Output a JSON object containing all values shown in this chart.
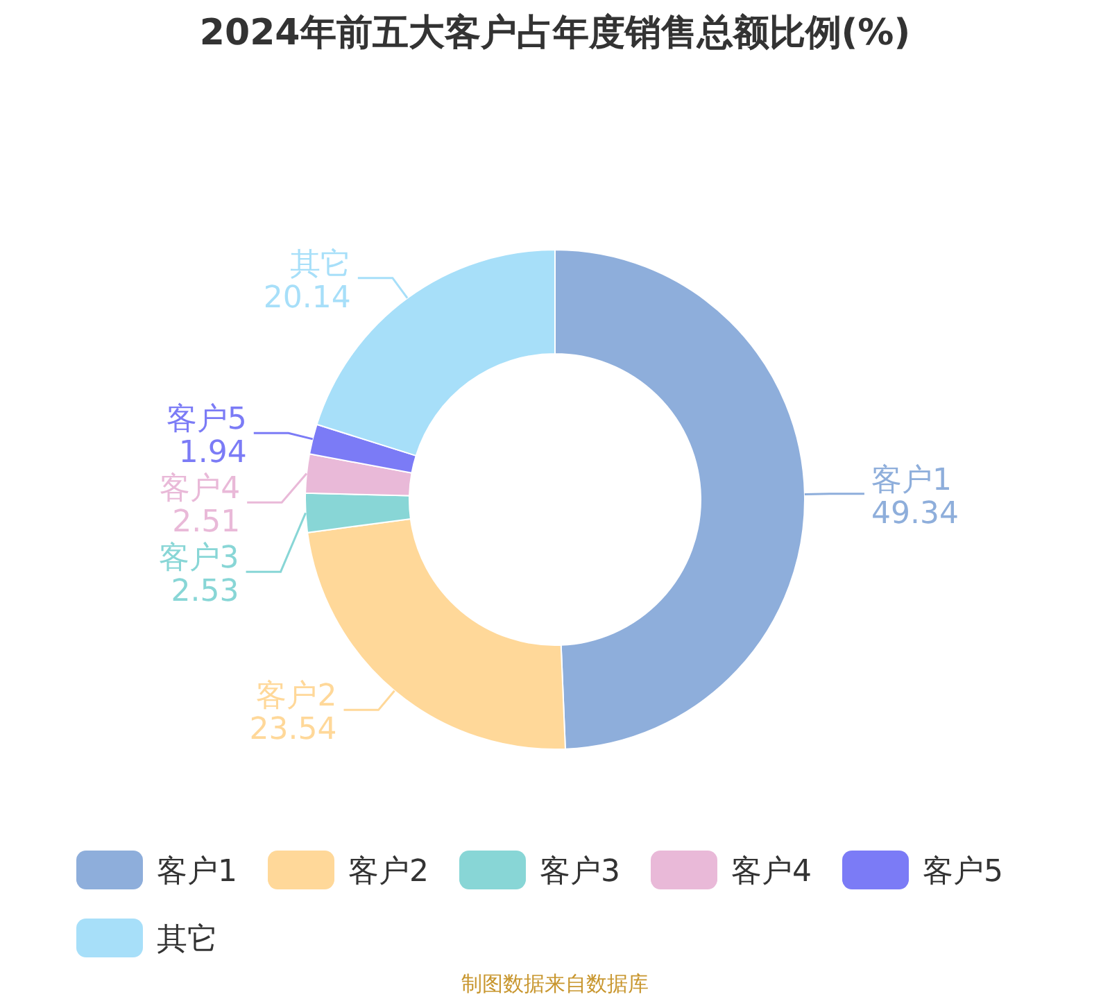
{
  "chart_data": {
    "type": "donut",
    "title": "2024年前五大客户占年度销售总额比例(%)",
    "categories": [
      "客户1",
      "客户2",
      "客户3",
      "客户4",
      "客户5",
      "其它"
    ],
    "values": [
      49.34,
      23.54,
      2.53,
      2.51,
      1.94,
      20.14
    ],
    "colors": [
      "#8eaedb",
      "#ffd899",
      "#88d6d6",
      "#e9b9d8",
      "#7b7bf6",
      "#a7dff9"
    ],
    "data_labels": true,
    "legend": "bottom",
    "annotations": [
      "制图数据来自数据库"
    ]
  }
}
